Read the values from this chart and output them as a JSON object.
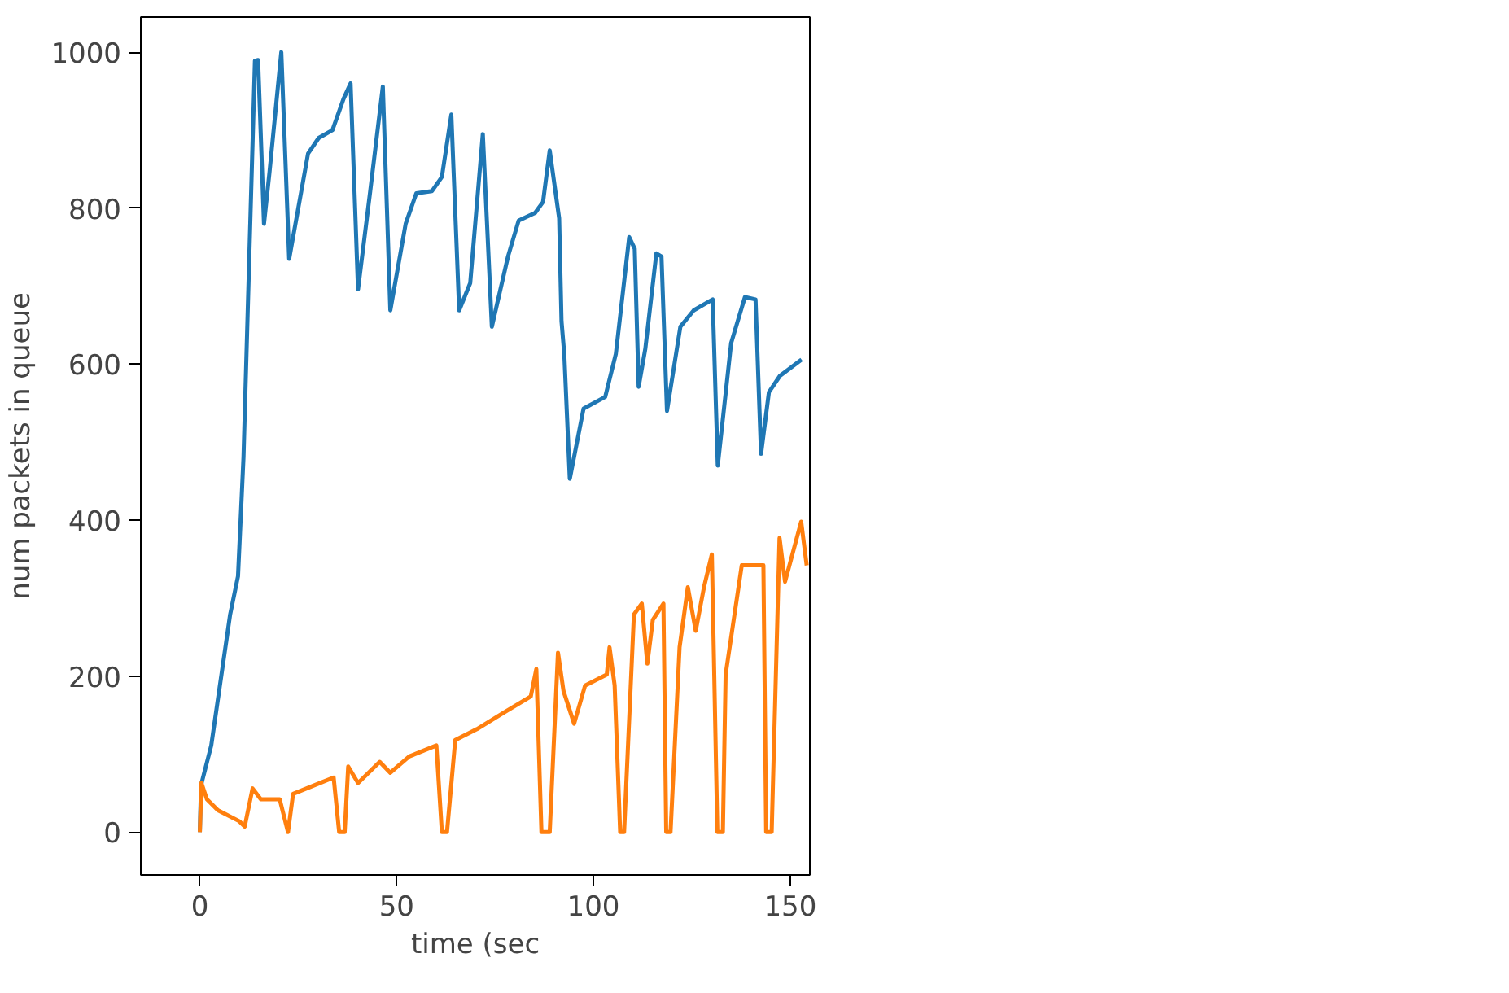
{
  "chart_data": {
    "type": "line",
    "xlabel": "time (sec",
    "ylabel": "num packets in queue",
    "xlim": [
      -15,
      155
    ],
    "ylim": [
      -55,
      1045
    ],
    "xticks": [
      0,
      50,
      100,
      150
    ],
    "yticks": [
      0,
      200,
      400,
      600,
      800,
      1000
    ],
    "grid": false,
    "marker": "none",
    "line_style": "solid",
    "series": [
      {
        "color": "#1f77b4",
        "x": [
          0,
          0.3,
          2.9,
          4.9,
          7.7,
          9.7,
          11.1,
          14,
          14.8,
          16.3,
          17.7,
          20.7,
          22.7,
          27.5,
          30.2,
          33.7,
          36.5,
          38.3,
          40.2,
          43.3,
          46.5,
          48.4,
          52.3,
          55,
          59,
          61.5,
          63.9,
          65.9,
          68.7,
          71.9,
          74.2,
          78.3,
          81,
          85.2,
          87.2,
          88.9,
          91.3,
          91.9,
          92.6,
          94,
          97.5,
          103,
          105.7,
          109.1,
          110.5,
          111.5,
          113.2,
          116,
          117.3,
          118.7,
          122.1,
          125.5,
          130.3,
          131.6,
          135,
          138.5,
          141.2,
          142.6,
          144.6,
          147.4,
          152.9
        ],
        "values": [
          0,
          60,
          111,
          181,
          279,
          328,
          481,
          989,
          990,
          780,
          846,
          1000,
          735,
          870,
          890,
          900,
          940,
          960,
          696,
          822,
          956,
          669,
          780,
          819,
          822,
          840,
          920,
          669,
          704,
          895,
          648,
          738,
          784,
          794,
          808,
          874,
          787,
          655,
          613,
          453,
          543,
          558,
          613,
          763,
          748,
          571,
          620,
          742,
          738,
          540,
          648,
          669,
          683,
          470,
          627,
          686,
          683,
          485,
          564,
          585,
          606
        ]
      },
      {
        "color": "#ff7f0e",
        "x": [
          0,
          0.4,
          1.8,
          4.6,
          10,
          11.4,
          13.4,
          15.5,
          20.3,
          22.4,
          23.7,
          30.6,
          34,
          35.4,
          36.8,
          37.7,
          40.2,
          45.7,
          48.4,
          53.2,
          60.1,
          61.5,
          62.8,
          64.9,
          70.4,
          77.2,
          84.1,
          85.5,
          86.8,
          88.9,
          91,
          92.4,
          95.1,
          97.9,
          103.4,
          104.1,
          105.4,
          106.8,
          107.8,
          110.3,
          112.3,
          113.7,
          115.1,
          117.8,
          118.5,
          119.6,
          121.9,
          124,
          126,
          128.1,
          130.1,
          131.5,
          132.9,
          133.6,
          137.7,
          143.2,
          143.9,
          145.3,
          147.3,
          148.7,
          152.8,
          154.2
        ],
        "values": [
          0,
          63,
          42,
          28,
          14,
          7,
          56,
          42,
          42,
          0,
          49,
          63,
          70,
          0,
          0,
          84,
          63,
          90,
          76,
          97,
          111,
          0,
          0,
          118,
          132,
          153,
          174,
          209,
          0,
          0,
          230,
          181,
          139,
          188,
          202,
          237,
          188,
          0,
          0,
          279,
          293,
          216,
          272,
          293,
          0,
          0,
          237,
          314,
          258,
          314,
          356,
          0,
          0,
          202,
          342,
          342,
          0,
          0,
          377,
          321,
          398,
          342
        ]
      }
    ]
  }
}
